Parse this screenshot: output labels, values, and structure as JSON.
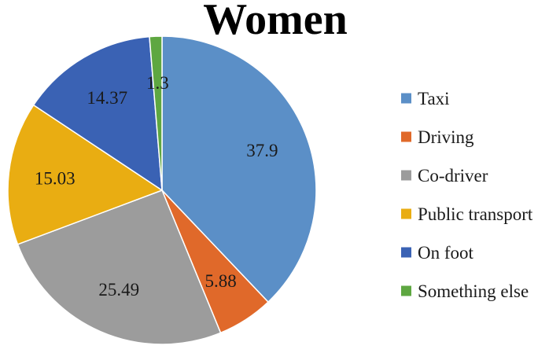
{
  "chart_data": {
    "type": "pie",
    "title": "Women",
    "legend_position": "right",
    "start_angle_deg": 0,
    "direction": "clockwise",
    "slices": [
      {
        "label": "Taxi",
        "value": 37.9,
        "display": "37.9",
        "color": "#5b8fc7"
      },
      {
        "label": "Driving",
        "value": 5.88,
        "display": "5.88",
        "color": "#e0692a"
      },
      {
        "label": "Co-driver",
        "value": 25.49,
        "display": "25.49",
        "color": "#9c9c9c"
      },
      {
        "label": "Public transport",
        "value": 15.03,
        "display": "15.03",
        "color": "#e9ad12"
      },
      {
        "label": "On foot",
        "value": 14.37,
        "display": "14.37",
        "color": "#3a62b4"
      },
      {
        "label": "Something else",
        "value": 1.3,
        "display": "1.3",
        "color": "#5ea741"
      }
    ]
  }
}
